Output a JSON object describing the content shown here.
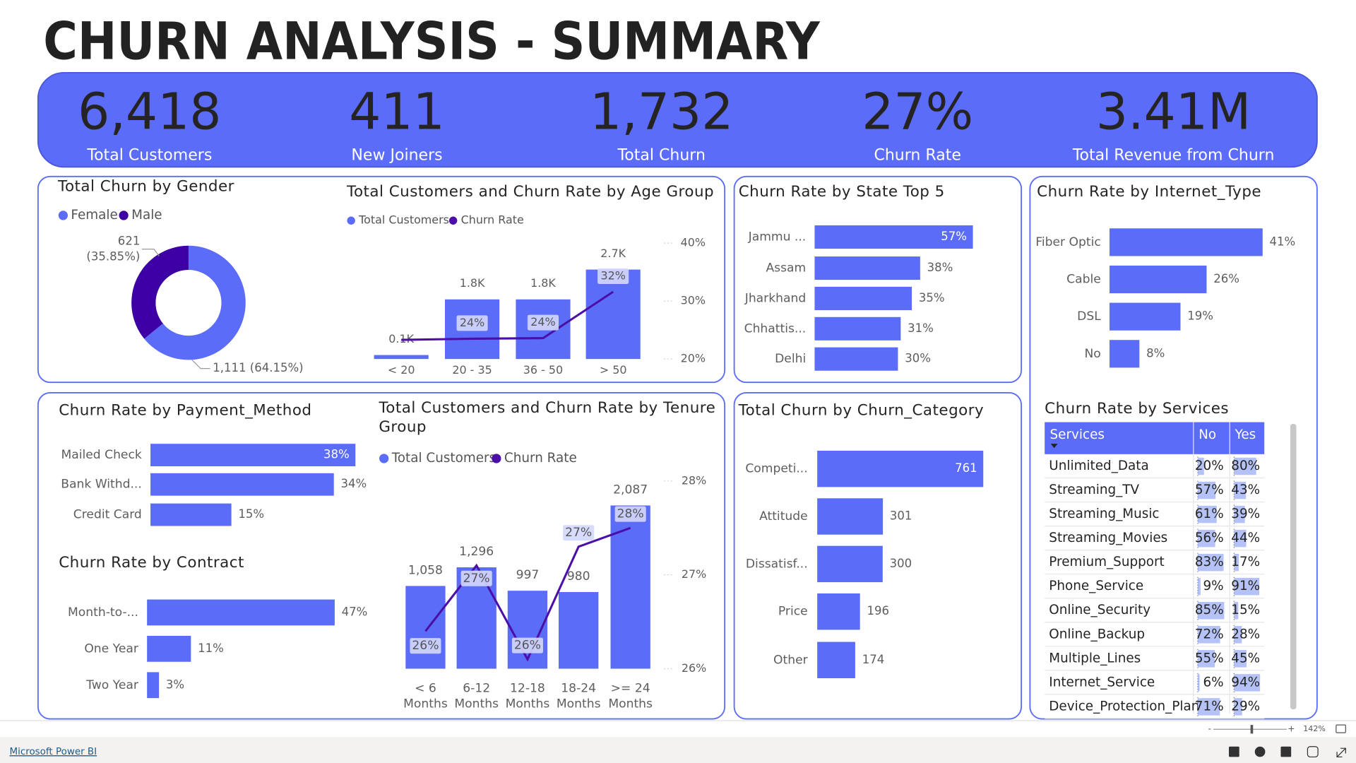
{
  "title": "CHURN ANALYSIS - SUMMARY",
  "kpis": [
    {
      "value": "6,418",
      "label": "Total Customers"
    },
    {
      "value": "411",
      "label": "New Joiners"
    },
    {
      "value": "1,732",
      "label": "Total Churn"
    },
    {
      "value": "27%",
      "label": "Churn Rate"
    },
    {
      "value": "3.41M",
      "label": "Total Revenue from Churn"
    }
  ],
  "chart_data": [
    {
      "type": "donut",
      "title": "Total Churn by Gender",
      "categories": [
        "Female",
        "Male"
      ],
      "values": [
        1111,
        621
      ],
      "value_labels": [
        "1,111 (64.15%)",
        "621 (35.85%)"
      ],
      "colors": [
        "#5b6cf9",
        "#3d00a5"
      ],
      "legend": "top-left"
    },
    {
      "type": "combo",
      "title": "Total Customers and Churn Rate by Age Group",
      "categories": [
        "< 20",
        "20 - 35",
        "36 - 50",
        "> 50"
      ],
      "series": [
        {
          "name": "Total Customers",
          "type": "bar",
          "color": "#5b6cf9",
          "values": [
            120,
            1800,
            1800,
            2700
          ],
          "value_labels": [
            "0.1K",
            "1.8K",
            "1.8K",
            "2.7K"
          ]
        },
        {
          "name": "Churn Rate",
          "type": "line",
          "axis": "y2",
          "color": "#4b0fa8",
          "values": [
            23.3,
            23.5,
            23.6,
            31.6
          ],
          "value_labels": [
            null,
            "24%",
            "24%",
            "32%"
          ]
        }
      ],
      "ylim": [
        0,
        3500
      ],
      "y2lim": [
        20,
        40
      ],
      "y2ticks": [
        {
          "value": 20,
          "label": "20%"
        },
        {
          "value": 30,
          "label": "30%"
        },
        {
          "value": 40,
          "label": "40%"
        }
      ],
      "legend": "top-left"
    },
    {
      "type": "hbar",
      "title": "Churn Rate by State Top 5",
      "categories": [
        "Jammu ...",
        "Assam",
        "Jharkhand",
        "Chhattis...",
        "Delhi"
      ],
      "values": [
        57,
        38,
        35,
        31,
        30
      ],
      "value_labels": [
        "57%",
        "38%",
        "35%",
        "31%",
        "30%"
      ],
      "color": "#5b6cf9",
      "xlim": [
        0,
        57
      ]
    },
    {
      "type": "hbar",
      "title": "Churn Rate by Internet_Type",
      "categories": [
        "Fiber Optic",
        "Cable",
        "DSL",
        "No"
      ],
      "values": [
        41,
        26,
        19,
        8
      ],
      "value_labels": [
        "41%",
        "26%",
        "19%",
        "8%"
      ],
      "color": "#5b6cf9",
      "xlim": [
        0,
        41
      ]
    },
    {
      "type": "hbar",
      "title": "Churn Rate by Payment_Method",
      "categories": [
        "Mailed Check",
        "Bank Withd...",
        "Credit Card"
      ],
      "values": [
        38,
        34,
        15
      ],
      "value_labels": [
        "38%",
        "34%",
        "15%"
      ],
      "color": "#5b6cf9",
      "xlim": [
        0,
        38
      ]
    },
    {
      "type": "hbar",
      "title": "Churn Rate by Contract",
      "categories": [
        "Month-to-...",
        "One Year",
        "Two Year"
      ],
      "values": [
        47,
        11,
        3
      ],
      "value_labels": [
        "47%",
        "11%",
        "3%"
      ],
      "color": "#5b6cf9",
      "xlim": [
        0,
        47
      ]
    },
    {
      "type": "combo",
      "title": "Total Customers and Churn Rate by Tenure Group",
      "categories": [
        "< 6 Months",
        "6-12 Months",
        "12-18 Months",
        "18-24 Months",
        ">= 24 Months"
      ],
      "series": [
        {
          "name": "Total Customers",
          "type": "bar",
          "color": "#5b6cf9",
          "values": [
            1058,
            1296,
            997,
            980,
            2087
          ],
          "value_labels": [
            "1,058",
            "1,296",
            "997",
            "980",
            "2,087"
          ]
        },
        {
          "name": "Churn Rate",
          "type": "line",
          "axis": "y2",
          "color": "#4b0fa8",
          "values": [
            26.4,
            27.1,
            26.1,
            27.3,
            27.5
          ],
          "value_labels": [
            "26%",
            "27%",
            "26%",
            "27%",
            "28%"
          ]
        }
      ],
      "ylim": [
        0,
        2400
      ],
      "y2lim": [
        26,
        28
      ],
      "y2ticks": [
        {
          "value": 26,
          "label": "26%"
        },
        {
          "value": 27,
          "label": "27%"
        },
        {
          "value": 28,
          "label": "28%"
        }
      ],
      "legend": "top-left"
    },
    {
      "type": "hbar",
      "title": "Total Churn by Churn_Category",
      "categories": [
        "Competi...",
        "Attitude",
        "Dissatisf...",
        "Price",
        "Other"
      ],
      "values": [
        761,
        301,
        300,
        196,
        174
      ],
      "color": "#5b6cf9",
      "xlim": [
        0,
        761
      ]
    }
  ],
  "services_table": {
    "title": "Churn Rate by Services",
    "columns": [
      "Services",
      "No",
      "Yes"
    ],
    "rows": [
      [
        "Unlimited_Data",
        20,
        80
      ],
      [
        "Streaming_TV",
        57,
        43
      ],
      [
        "Streaming_Music",
        61,
        39
      ],
      [
        "Streaming_Movies",
        56,
        44
      ],
      [
        "Premium_Support",
        83,
        17
      ],
      [
        "Phone_Service",
        9,
        91
      ],
      [
        "Online_Security",
        85,
        15
      ],
      [
        "Online_Backup",
        72,
        28
      ],
      [
        "Multiple_Lines",
        55,
        45
      ],
      [
        "Internet_Service",
        6,
        94
      ],
      [
        "Device_Protection_Plan",
        71,
        29
      ]
    ],
    "value_labels": [
      [
        "20%",
        "80%"
      ],
      [
        "57%",
        "43%"
      ],
      [
        "61%",
        "39%"
      ],
      [
        "56%",
        "44%"
      ],
      [
        "83%",
        "17%"
      ],
      [
        "9%",
        "91%"
      ],
      [
        "85%",
        "15%"
      ],
      [
        "72%",
        "28%"
      ],
      [
        "55%",
        "45%"
      ],
      [
        "6%",
        "94%"
      ],
      [
        "71%",
        "29%"
      ]
    ],
    "bar_color": "#b4c2f7"
  },
  "footer": {
    "brand": "Microsoft Power BI",
    "zoom": "142%"
  }
}
